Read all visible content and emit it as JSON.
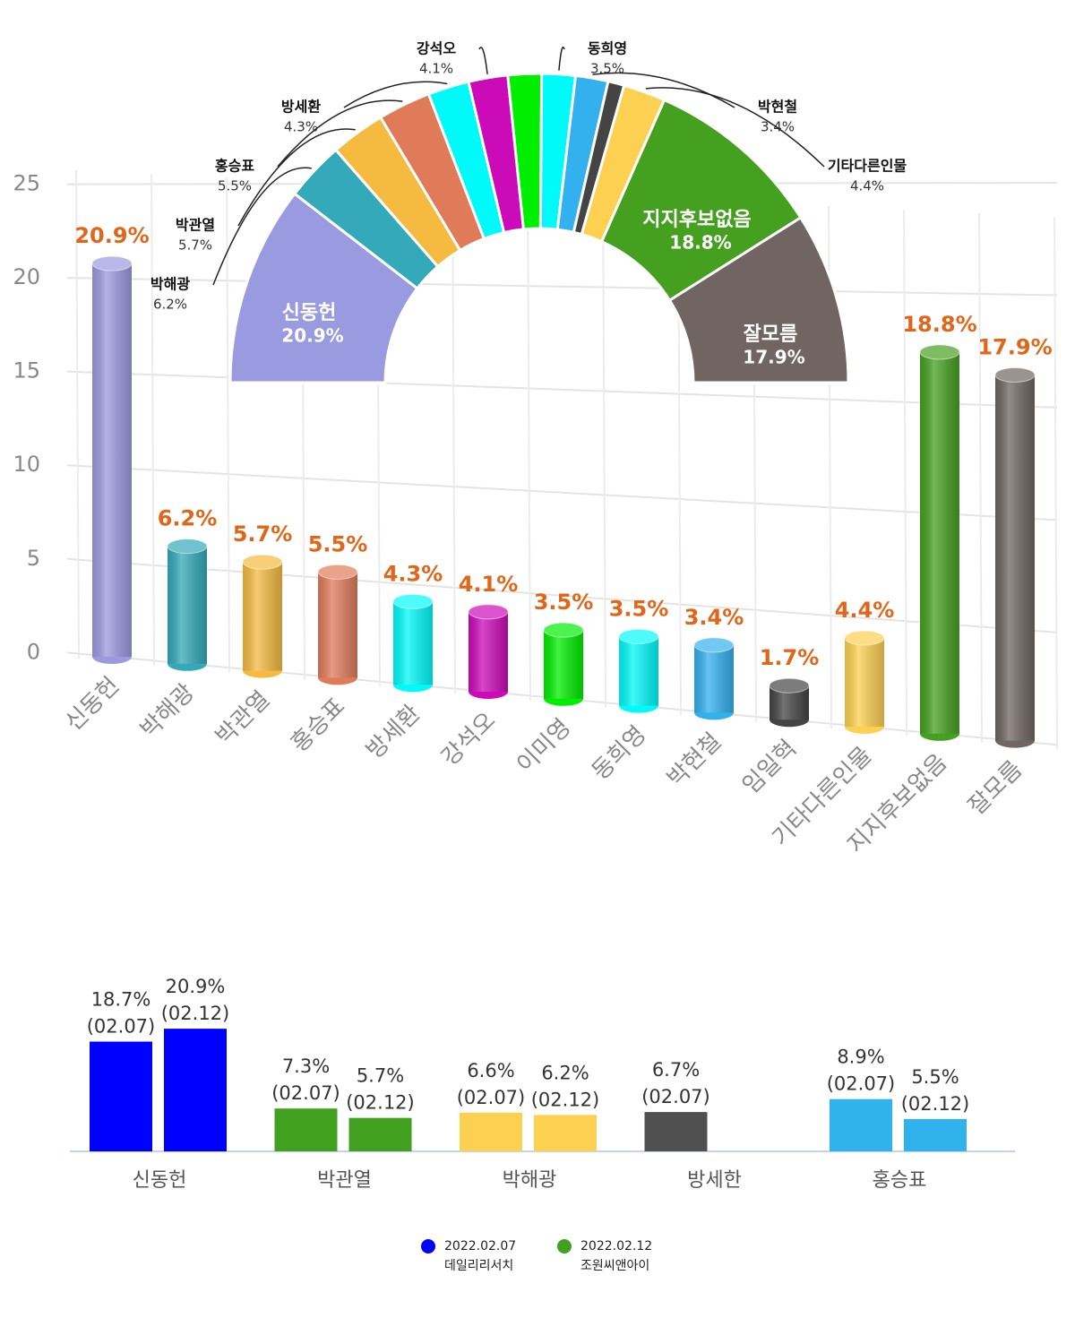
{
  "chart_data": [
    {
      "type": "bar",
      "categories": [
        "신동헌",
        "박해광",
        "박관열",
        "홍승표",
        "방세환",
        "강석오",
        "이미영",
        "동희영",
        "박현철",
        "임일혁",
        "기타다른인물",
        "지지후보없음",
        "잘모름"
      ],
      "values": [
        20.9,
        6.2,
        5.7,
        5.5,
        4.3,
        4.1,
        3.5,
        3.5,
        3.4,
        1.7,
        4.4,
        18.8,
        17.9
      ],
      "value_labels": [
        "20.9%",
        "6.2%",
        "5.7%",
        "5.5%",
        "4.3%",
        "4.1%",
        "3.5%",
        "3.5%",
        "3.4%",
        "1.7%",
        "4.4%",
        "18.8%",
        "17.9%"
      ],
      "colors": [
        "#9a9ae0",
        "#33a9b9",
        "#f4bb40",
        "#e07b5a",
        "#00fafa",
        "#cc0bb8",
        "#00ee00",
        "#00fafa",
        "#33b0ee",
        "#444444",
        "#fcd050",
        "#45a020",
        "#706562"
      ],
      "label_color": "#e0661a",
      "ylim": [
        0,
        25
      ],
      "yticks": [
        0,
        5,
        10,
        15,
        20,
        25
      ],
      "grid": true
    },
    {
      "type": "pie",
      "categories": [
        "신동헌",
        "박해광",
        "박관열",
        "홍승표",
        "방세환",
        "강석오",
        null,
        "동희영",
        "박현철",
        null,
        "기타다른인물",
        "지지후보없음",
        "잘모름"
      ],
      "values": [
        20.9,
        6.2,
        5.7,
        5.5,
        4.3,
        4.1,
        3.5,
        3.5,
        3.4,
        1.7,
        4.4,
        18.8,
        17.9
      ],
      "value_labels": [
        "20.9%",
        "6.2%",
        "5.7%",
        "5.5%",
        "4.3%",
        "4.1%",
        null,
        "3.5%",
        "3.4%",
        null,
        "4.4%",
        "18.8%",
        "17.9%"
      ],
      "colors": [
        "#9a9ae0",
        "#33a9b9",
        "#f4bb40",
        "#e07b5a",
        "#00fafa",
        "#cc0bb8",
        "#00ee00",
        "#00fafa",
        "#33b0ee",
        "#444444",
        "#fcd050",
        "#45a020",
        "#706562"
      ]
    },
    {
      "type": "bar",
      "categories": [
        "신동헌",
        "박관열",
        "박해광",
        "방세한",
        "홍승표"
      ],
      "colors": [
        "#0000ff",
        "#41a020",
        "#fcd050",
        "#505050",
        "#30b2ec"
      ],
      "series": [
        {
          "name": "2022.02.07",
          "source": "데일리리서치",
          "color": "#0000ff",
          "values": [
            18.7,
            7.3,
            6.6,
            6.7,
            8.9
          ],
          "value_labels": [
            "18.7%\n(02.07)",
            "7.3%\n(02.07)",
            "6.6%\n(02.07)",
            "6.7%\n(02.07)",
            "8.9%\n(02.07)"
          ]
        },
        {
          "name": "2022.02.12",
          "source": "조원씨앤아이",
          "color": "#41a020",
          "values": [
            20.9,
            5.7,
            6.2,
            null,
            5.5
          ],
          "value_labels": [
            "20.9%\n(02.12)",
            "5.7%\n(02.12)",
            "6.2%\n(02.12)",
            null,
            "5.5%\n(02.12)"
          ]
        }
      ]
    }
  ]
}
